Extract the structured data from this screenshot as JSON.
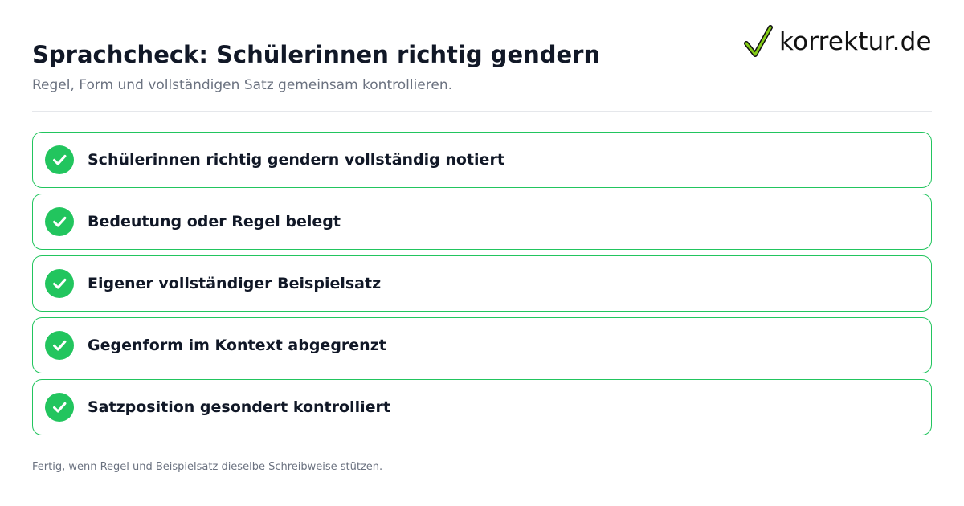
{
  "header": {
    "title": "Sprachcheck: Schülerinnen richtig gendern",
    "subtitle": "Regel, Form und vollständigen Satz gemeinsam kontrollieren."
  },
  "brand": {
    "logo_text": "korrektur.de",
    "logo_icon": "checkmark-icon",
    "check_color": "#22c55e"
  },
  "checklist": {
    "item_icon": "check-circle-icon",
    "items": [
      {
        "label": "Schülerinnen richtig gendern vollständig notiert",
        "checked": true
      },
      {
        "label": "Bedeutung oder Regel belegt",
        "checked": true
      },
      {
        "label": "Eigener vollständiger Beispielsatz",
        "checked": true
      },
      {
        "label": "Gegenform im Kontext abgegrenzt",
        "checked": true
      },
      {
        "label": "Satzposition gesondert kontrolliert",
        "checked": true
      }
    ]
  },
  "footer": {
    "note": "Fertig, wenn Regel und Beispielsatz dieselbe Schreibweise stützen."
  }
}
